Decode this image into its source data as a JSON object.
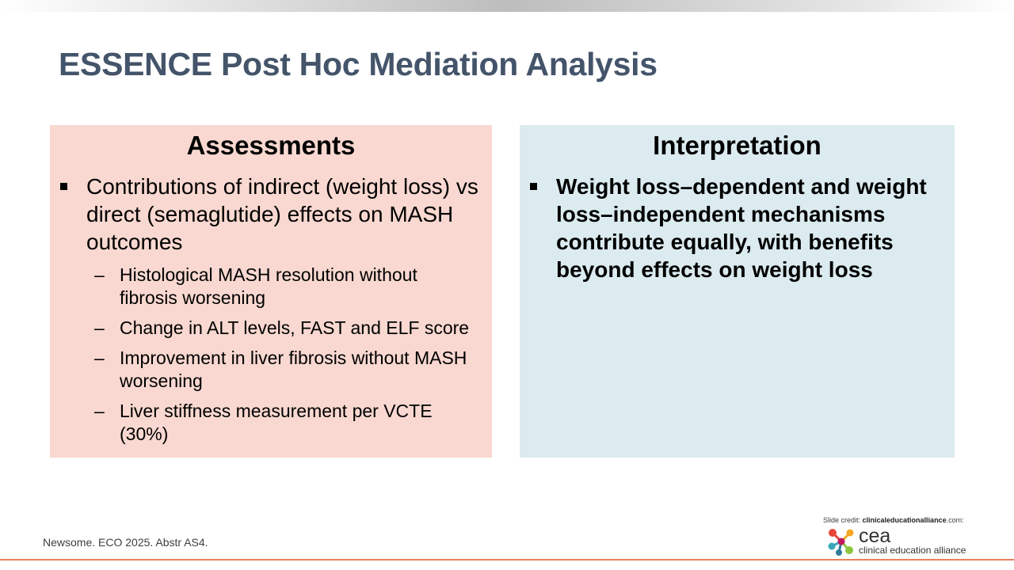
{
  "slide": {
    "title": "ESSENCE Post Hoc Mediation Analysis",
    "left_panel": {
      "heading": "Assessments",
      "bullet": "Contributions of indirect (weight loss) vs direct (semaglutide) effects on MASH outcomes",
      "sub_bullets": [
        "Histological MASH resolution without fibrosis worsening",
        "Change in ALT levels, FAST and ELF score",
        "Improvement in liver fibrosis without MASH worsening",
        "Liver stiffness measurement per VCTE (30%)"
      ],
      "background": "#f8d8d0"
    },
    "right_panel": {
      "heading": "Interpretation",
      "bullet": "Weight loss–dependent and weight loss–independent mechanisms contribute equally, with benefits beyond effects on weight loss",
      "background": "#dbebf0"
    },
    "citation": "Newsome. ECO 2025. Abstr AS4.",
    "credit": {
      "prefix": "Slide credit: ",
      "site": "clinicaleducationalliance",
      "suffix": ".com:"
    },
    "logo": {
      "word": "cea",
      "subtitle": "clinical education alliance"
    },
    "colors": {
      "title": "#44546a",
      "accent_rule": "#e8825c"
    }
  }
}
